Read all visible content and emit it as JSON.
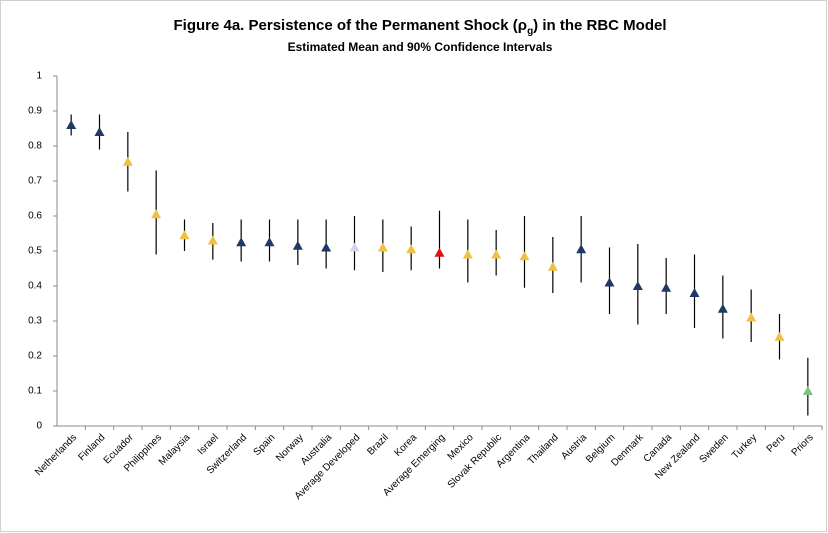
{
  "chart_data": {
    "type": "errorpoint",
    "title_parts": [
      "Figure 4a. Persistence of the Permanent Shock (ρ",
      "g",
      ") in the RBC Model"
    ],
    "subtitle": "Estimated Mean and 90% Confidence Intervals",
    "categories": [
      "Netherlands",
      "Finland",
      "Ecuador",
      "Philippines",
      "Malaysia",
      "Israel",
      "Switzerland",
      "Spain",
      "Norway",
      "Australia",
      "Average Developed",
      "Brazil",
      "Korea",
      "Average Emerging",
      "Mexico",
      "Slovak Republic",
      "Argentina",
      "Thailand",
      "Austria",
      "Belgium",
      "Denmark",
      "Canada",
      "New Zealand",
      "Sweden",
      "Turkey",
      "Peru",
      "Priors"
    ],
    "values": [
      0.86,
      0.84,
      0.755,
      0.605,
      0.545,
      0.53,
      0.525,
      0.525,
      0.515,
      0.51,
      0.51,
      0.51,
      0.505,
      0.495,
      0.49,
      0.49,
      0.485,
      0.455,
      0.505,
      0.41,
      0.4,
      0.395,
      0.38,
      0.335,
      0.31,
      0.255,
      0.1
    ],
    "lower": [
      0.83,
      0.79,
      0.67,
      0.49,
      0.5,
      0.475,
      0.47,
      0.47,
      0.46,
      0.45,
      0.445,
      0.44,
      0.445,
      0.45,
      0.41,
      0.43,
      0.395,
      0.38,
      0.41,
      0.32,
      0.29,
      0.32,
      0.28,
      0.25,
      0.24,
      0.19,
      0.03
    ],
    "upper": [
      0.89,
      0.89,
      0.84,
      0.73,
      0.59,
      0.58,
      0.59,
      0.59,
      0.59,
      0.59,
      0.6,
      0.59,
      0.57,
      0.615,
      0.59,
      0.56,
      0.6,
      0.54,
      0.6,
      0.51,
      0.52,
      0.48,
      0.49,
      0.43,
      0.39,
      0.32,
      0.195
    ],
    "colors": [
      "#1f3864",
      "#1f3864",
      "#f0c040",
      "#f0c040",
      "#f0c040",
      "#f0c040",
      "#1f3864",
      "#1f3864",
      "#1f3864",
      "#1f3864",
      "#d0d4ec",
      "#f0c040",
      "#f0c040",
      "#e01010",
      "#f0c040",
      "#f0c040",
      "#f0c040",
      "#f0c040",
      "#1f3864",
      "#1f3864",
      "#1f3864",
      "#1f3864",
      "#1f3864",
      "#1f3864",
      "#f0c040",
      "#f0c040",
      "#80c080"
    ],
    "bar_color": "#000000",
    "ylim": [
      0,
      1
    ],
    "yticks": [
      0,
      0.1,
      0.2,
      0.3,
      0.4,
      0.5,
      0.6,
      0.7,
      0.8,
      0.9,
      1
    ]
  }
}
